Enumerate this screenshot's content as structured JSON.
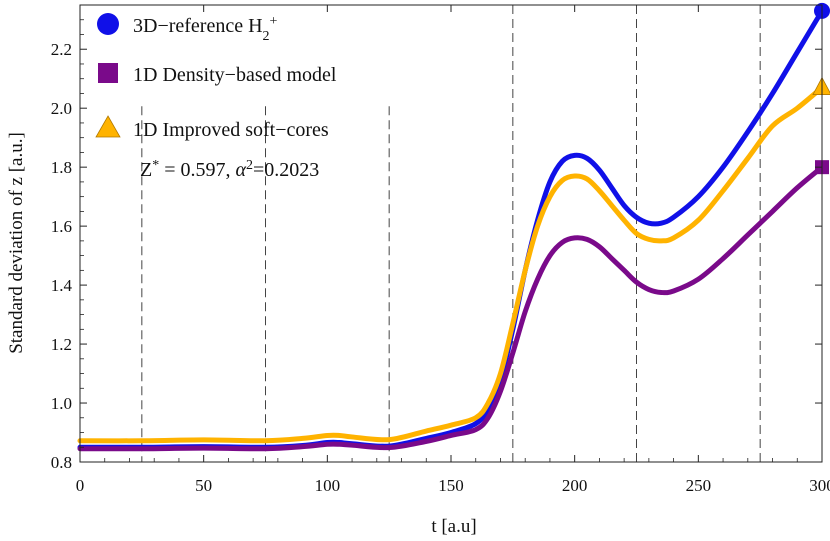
{
  "chart_data": {
    "type": "line",
    "title": "",
    "xlabel": "t  [a.u]",
    "ylabel": "Standard  deviation  of  z  [a.u.]",
    "xlim": [
      0,
      300
    ],
    "ylim": [
      0.8,
      2.35
    ],
    "xticks": [
      0,
      50,
      100,
      150,
      200,
      250,
      300
    ],
    "yticks": [
      0.8,
      1.0,
      1.2,
      1.4,
      1.6,
      1.8,
      2.0,
      2.2
    ],
    "ytick_labels": [
      "0.8",
      "1.0",
      "1.2",
      "1.4",
      "1.6",
      "1.8",
      "2.0",
      "2.2"
    ],
    "vlines": [
      25,
      75,
      125,
      175,
      225,
      275
    ],
    "legend_position": "top-left",
    "legend": {
      "ref_main": "3D−reference H",
      "ref_sub": "2",
      "ref_sup": "+",
      "density": "1D Density−based model",
      "improved": "1D Improved soft−cores"
    },
    "annotation": {
      "z_prefix": "Z",
      "z_sup": "*",
      "z_value": " = 0.597, ",
      "alpha": "α",
      "alpha_sup": "2",
      "alpha_value": "=0.2023"
    },
    "series": [
      {
        "name": "3D-reference H2+",
        "color": "#1010e8",
        "marker": "circle",
        "x": [
          0,
          25,
          50,
          75,
          90,
          100,
          105,
          110,
          125,
          140,
          150,
          160,
          165,
          170,
          175,
          180,
          185,
          190,
          195,
          200,
          205,
          210,
          215,
          220,
          225,
          230,
          235,
          240,
          250,
          260,
          270,
          280,
          290,
          300
        ],
        "y": [
          0.85,
          0.85,
          0.852,
          0.85,
          0.856,
          0.866,
          0.866,
          0.862,
          0.854,
          0.88,
          0.9,
          0.93,
          0.98,
          1.08,
          1.25,
          1.45,
          1.62,
          1.75,
          1.82,
          1.84,
          1.83,
          1.79,
          1.73,
          1.67,
          1.63,
          1.61,
          1.61,
          1.63,
          1.7,
          1.8,
          1.92,
          2.05,
          2.19,
          2.33
        ]
      },
      {
        "name": "1D Density-based model",
        "color": "#7a0a8a",
        "marker": "square",
        "x": [
          0,
          25,
          50,
          75,
          90,
          100,
          105,
          110,
          125,
          140,
          150,
          160,
          165,
          170,
          175,
          180,
          185,
          190,
          195,
          200,
          205,
          210,
          215,
          220,
          225,
          230,
          235,
          240,
          250,
          260,
          270,
          280,
          290,
          300
        ],
        "y": [
          0.845,
          0.845,
          0.847,
          0.845,
          0.852,
          0.86,
          0.86,
          0.857,
          0.849,
          0.87,
          0.89,
          0.91,
          0.95,
          1.04,
          1.17,
          1.31,
          1.42,
          1.5,
          1.545,
          1.56,
          1.555,
          1.53,
          1.49,
          1.45,
          1.41,
          1.385,
          1.375,
          1.38,
          1.42,
          1.49,
          1.57,
          1.65,
          1.73,
          1.8
        ]
      },
      {
        "name": "1D Improved soft-cores",
        "color": "#ffb300",
        "marker": "triangle",
        "x": [
          0,
          25,
          50,
          75,
          90,
          100,
          105,
          110,
          125,
          140,
          150,
          160,
          165,
          170,
          175,
          180,
          185,
          190,
          195,
          200,
          205,
          210,
          215,
          220,
          225,
          230,
          235,
          240,
          250,
          260,
          270,
          280,
          290,
          300
        ],
        "y": [
          0.872,
          0.872,
          0.875,
          0.872,
          0.88,
          0.89,
          0.89,
          0.885,
          0.876,
          0.905,
          0.925,
          0.95,
          1.0,
          1.1,
          1.27,
          1.45,
          1.6,
          1.7,
          1.755,
          1.77,
          1.76,
          1.72,
          1.67,
          1.62,
          1.575,
          1.555,
          1.55,
          1.56,
          1.62,
          1.72,
          1.83,
          1.94,
          2.0,
          2.07
        ]
      }
    ]
  }
}
